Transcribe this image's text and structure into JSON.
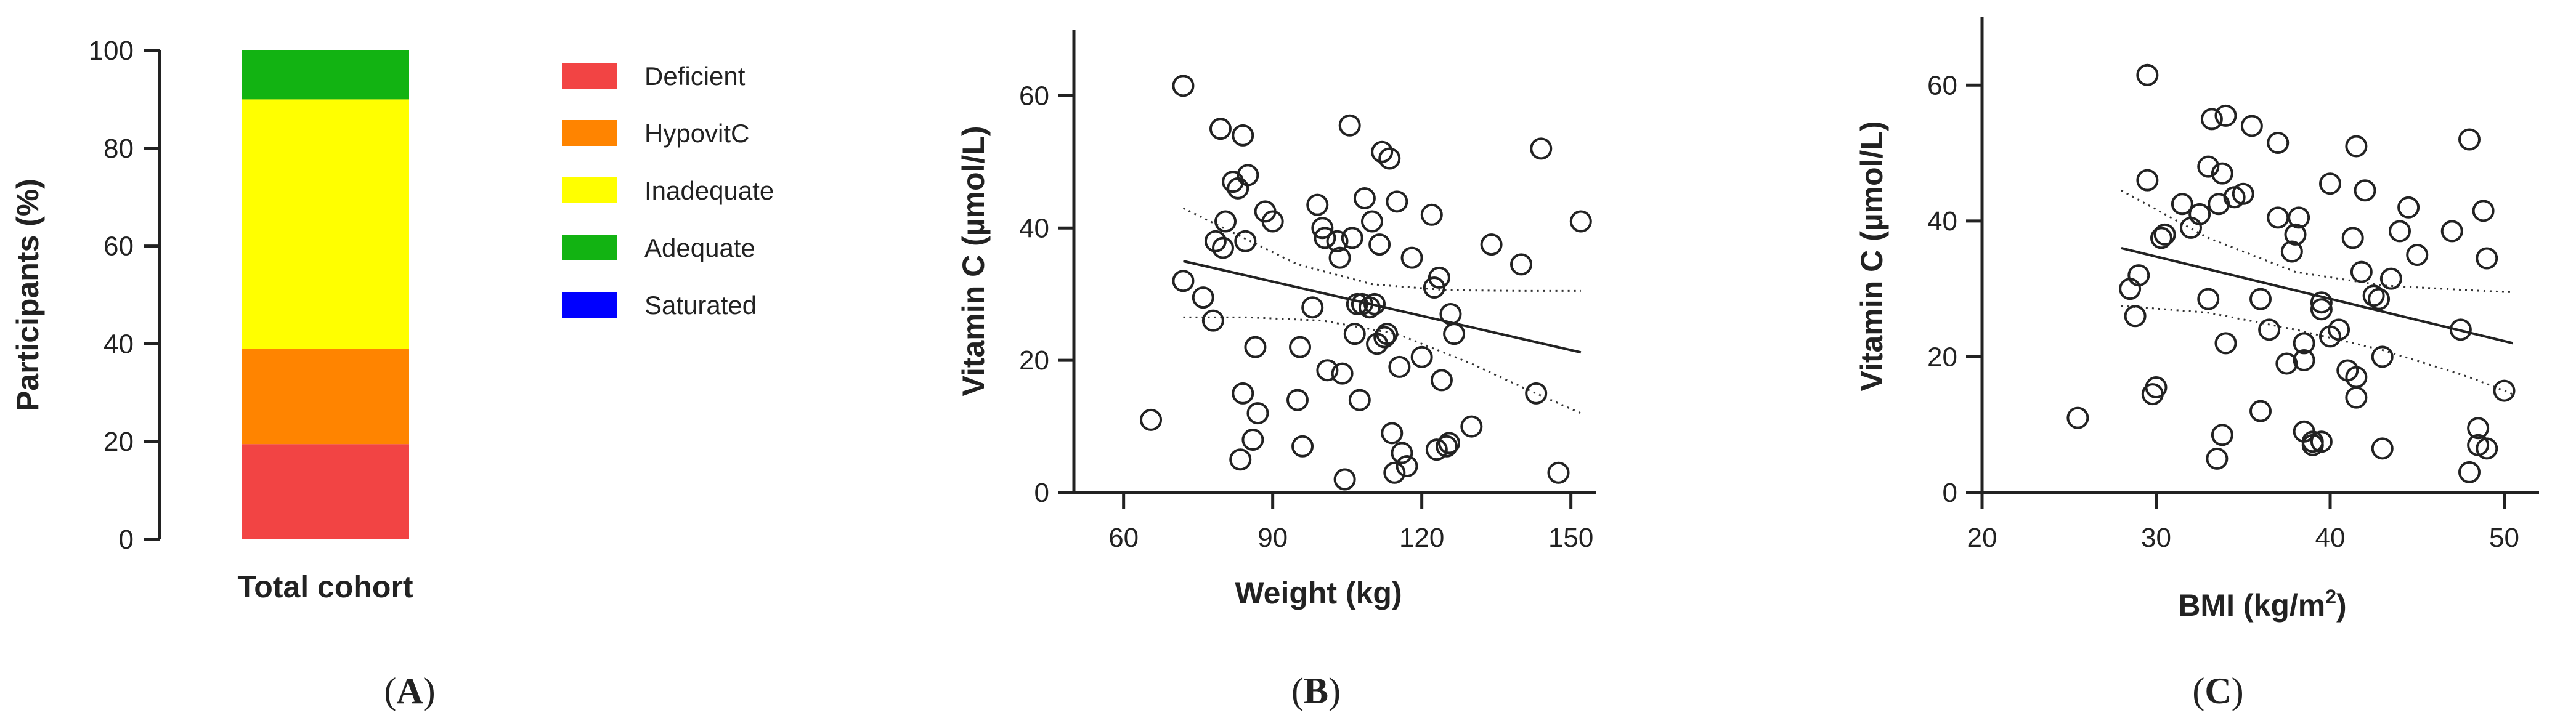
{
  "chart_data": [
    {
      "panel": "A",
      "type": "bar",
      "stacked": true,
      "categories": [
        "Total cohort"
      ],
      "ylabel": "Participants (%)",
      "xlabel": "",
      "ylim": [
        0,
        100
      ],
      "yticks": [
        0,
        20,
        40,
        60,
        80,
        100
      ],
      "legend_position": "right",
      "series": [
        {
          "name": "Deficient",
          "values": [
            19.5
          ],
          "color": "#f24444"
        },
        {
          "name": "HypovitC",
          "values": [
            19.5
          ],
          "color": "#ff8400"
        },
        {
          "name": "Inadequate",
          "values": [
            51
          ],
          "color": "#ffff00"
        },
        {
          "name": "Adequate",
          "values": [
            10
          ],
          "color": "#12b312"
        },
        {
          "name": "Saturated",
          "values": [
            0
          ],
          "color": "#0000ff"
        }
      ]
    },
    {
      "panel": "B",
      "type": "scatter",
      "xlabel": "Weight (kg)",
      "ylabel": "Vitamin C (µmol/L)",
      "xlim": [
        50,
        155
      ],
      "ylim": [
        0,
        70
      ],
      "xticks": [
        60,
        90,
        120,
        150
      ],
      "yticks": [
        0,
        20,
        40,
        60
      ],
      "regression": {
        "x": [
          72,
          152
        ],
        "y": [
          35,
          21.2
        ]
      },
      "ci_upper": {
        "x": [
          72,
          95,
          110,
          125,
          140,
          152
        ],
        "y": [
          43,
          34.5,
          31.5,
          30.6,
          30.5,
          30.5
        ]
      },
      "ci_lower": {
        "x": [
          72,
          85,
          100,
          115,
          130,
          140,
          152
        ],
        "y": [
          26.5,
          26.5,
          26,
          24,
          19.5,
          16,
          12
        ]
      },
      "points": [
        [
          72,
          61.5
        ],
        [
          65.5,
          11
        ],
        [
          72,
          32
        ],
        [
          76,
          29.5
        ],
        [
          78,
          26
        ],
        [
          78.5,
          38
        ],
        [
          79.5,
          55
        ],
        [
          80,
          37
        ],
        [
          80.5,
          41
        ],
        [
          82,
          47
        ],
        [
          83,
          46
        ],
        [
          83.5,
          5
        ],
        [
          84,
          54
        ],
        [
          84,
          15
        ],
        [
          84.5,
          38
        ],
        [
          85,
          48
        ],
        [
          86,
          8
        ],
        [
          86.5,
          22
        ],
        [
          87,
          12
        ],
        [
          88.5,
          42.5
        ],
        [
          90,
          41
        ],
        [
          95,
          14
        ],
        [
          95.5,
          22
        ],
        [
          96,
          7
        ],
        [
          98,
          28
        ],
        [
          99,
          43.5
        ],
        [
          100,
          40
        ],
        [
          100.5,
          38.5
        ],
        [
          101,
          18.5
        ],
        [
          103,
          38
        ],
        [
          103.5,
          35.5
        ],
        [
          104,
          18
        ],
        [
          104.5,
          2
        ],
        [
          105.5,
          55.5
        ],
        [
          106,
          38.5
        ],
        [
          106.5,
          24
        ],
        [
          107,
          28.5
        ],
        [
          107.5,
          14
        ],
        [
          108,
          28.5
        ],
        [
          108.5,
          44.5
        ],
        [
          109.5,
          28
        ],
        [
          110,
          41
        ],
        [
          110.5,
          28.5
        ],
        [
          111,
          22.5
        ],
        [
          111.5,
          37.5
        ],
        [
          112,
          51.5
        ],
        [
          112.5,
          23.5
        ],
        [
          113,
          24
        ],
        [
          113.5,
          50.5
        ],
        [
          114,
          9
        ],
        [
          114.5,
          3
        ],
        [
          115,
          44
        ],
        [
          115.5,
          19
        ],
        [
          116,
          6
        ],
        [
          117,
          4
        ],
        [
          118,
          35.5
        ],
        [
          120,
          20.5
        ],
        [
          122,
          42
        ],
        [
          122.5,
          31
        ],
        [
          123,
          6.5
        ],
        [
          123.5,
          32.5
        ],
        [
          124,
          17
        ],
        [
          125,
          7
        ],
        [
          125.5,
          7.5
        ],
        [
          125.8,
          27
        ],
        [
          126.5,
          24
        ],
        [
          130,
          10
        ],
        [
          134,
          37.5
        ],
        [
          140,
          34.5
        ],
        [
          143,
          15
        ],
        [
          144,
          52
        ],
        [
          147.5,
          3
        ],
        [
          152,
          41
        ]
      ]
    },
    {
      "panel": "C",
      "type": "scatter",
      "xlabel": "BMI (kg/m",
      "xlabel_sup": "2",
      "xlabel_close": ")",
      "ylabel": "Vitamin C (µmol/L)",
      "xlim": [
        20,
        52
      ],
      "ylim": [
        0,
        70
      ],
      "xticks": [
        20,
        30,
        40,
        50
      ],
      "yticks": [
        0,
        20,
        40,
        60
      ],
      "regression": {
        "x": [
          28,
          50.5
        ],
        "y": [
          36,
          22
        ]
      },
      "ci_upper": {
        "x": [
          28,
          33,
          38,
          43,
          48,
          50.5
        ],
        "y": [
          44.5,
          37.5,
          32.5,
          30.5,
          29.8,
          29.5
        ]
      },
      "ci_lower": {
        "x": [
          28,
          33,
          38,
          43,
          48,
          50.5
        ],
        "y": [
          27.5,
          26.5,
          24,
          21,
          17,
          14.5
        ]
      },
      "points": [
        [
          25.5,
          11
        ],
        [
          28.5,
          30
        ],
        [
          28.8,
          26
        ],
        [
          29,
          32
        ],
        [
          29.5,
          46
        ],
        [
          29.5,
          61.5
        ],
        [
          29.8,
          14.5
        ],
        [
          30,
          15.5
        ],
        [
          30.3,
          37.5
        ],
        [
          30.5,
          38
        ],
        [
          31.5,
          42.5
        ],
        [
          32,
          39
        ],
        [
          32.5,
          41
        ],
        [
          33,
          48
        ],
        [
          33,
          28.5
        ],
        [
          33.2,
          55
        ],
        [
          33.5,
          5
        ],
        [
          33.6,
          42.5
        ],
        [
          33.8,
          47
        ],
        [
          33.8,
          8.5
        ],
        [
          34,
          55.5
        ],
        [
          34,
          22
        ],
        [
          34.5,
          43.5
        ],
        [
          35,
          44
        ],
        [
          35.5,
          54
        ],
        [
          36,
          12
        ],
        [
          36,
          28.5
        ],
        [
          36.5,
          24
        ],
        [
          37,
          51.5
        ],
        [
          37,
          40.5
        ],
        [
          37.5,
          19
        ],
        [
          37.8,
          35.5
        ],
        [
          38,
          38
        ],
        [
          38.2,
          40.5
        ],
        [
          38.5,
          22
        ],
        [
          38.5,
          9
        ],
        [
          38.5,
          19.5
        ],
        [
          39,
          7.5
        ],
        [
          39,
          7
        ],
        [
          39.5,
          28
        ],
        [
          39.5,
          27
        ],
        [
          39.5,
          7.5
        ],
        [
          40,
          45.5
        ],
        [
          40,
          23
        ],
        [
          40.5,
          24
        ],
        [
          41,
          18
        ],
        [
          41.3,
          37.5
        ],
        [
          41.5,
          51
        ],
        [
          41.5,
          17
        ],
        [
          41.5,
          14
        ],
        [
          41.8,
          32.5
        ],
        [
          42,
          44.5
        ],
        [
          42.5,
          29
        ],
        [
          42.8,
          28.5
        ],
        [
          43,
          20
        ],
        [
          43,
          6.5
        ],
        [
          43.5,
          31.5
        ],
        [
          44,
          38.5
        ],
        [
          44.5,
          42
        ],
        [
          45,
          35
        ],
        [
          47,
          38.5
        ],
        [
          47.5,
          24
        ],
        [
          48,
          52
        ],
        [
          48,
          3
        ],
        [
          48.5,
          9.5
        ],
        [
          48.5,
          7
        ],
        [
          48.8,
          41.5
        ],
        [
          49,
          6.5
        ],
        [
          49,
          34.5
        ],
        [
          50,
          15
        ]
      ]
    }
  ],
  "labels": {
    "panel_a_label": "A",
    "panel_b_label": "B",
    "panel_c_label": "C",
    "open_paren": "(",
    "close_paren": ")"
  }
}
